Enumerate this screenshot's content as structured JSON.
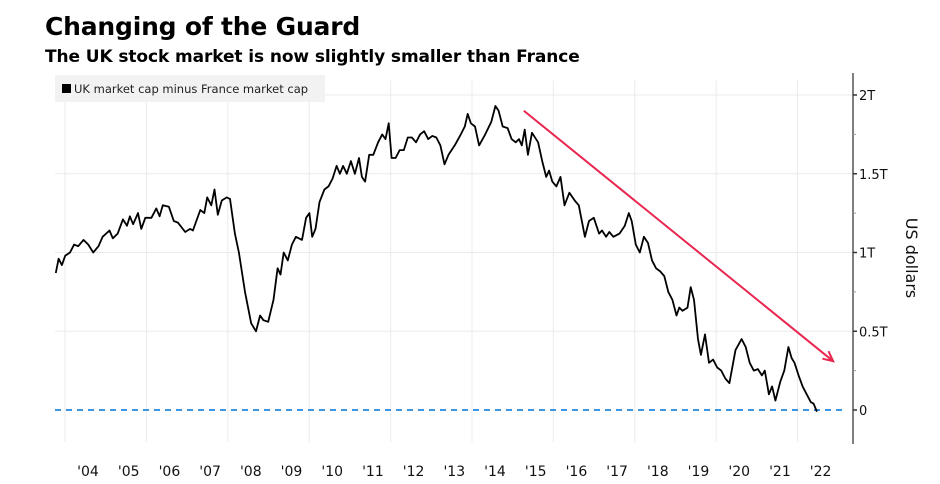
{
  "header": {
    "title": "Changing of the Guard",
    "subtitle": "The UK stock market is now slightly smaller than France"
  },
  "chart_data": {
    "type": "line",
    "title": "Changing of the Guard",
    "subtitle": "The UK stock market is now slightly smaller than France",
    "xlabel": "",
    "ylabel": "US dollars",
    "y_axis_position": "right",
    "ylim": [
      -0.15,
      2.1
    ],
    "xlim": [
      2003.7,
      2022.9
    ],
    "yticks": [
      0,
      0.5,
      1,
      1.5,
      2
    ],
    "ytick_labels": [
      "0",
      "0.5T",
      "1T",
      "1.5T",
      "2T"
    ],
    "xtick_labels": [
      "'04",
      "'05",
      "'06",
      "'07",
      "'08",
      "'09",
      "'10",
      "'11",
      "'12",
      "'13",
      "'14",
      "'15",
      "'16",
      "'17",
      "'18",
      "'19",
      "'20",
      "'21",
      "'22"
    ],
    "grid": true,
    "legend": {
      "placement": "top-left",
      "entries": [
        "UK market cap minus France market cap"
      ]
    },
    "series": [
      {
        "name": "UK market cap minus France market cap",
        "color": "#000000",
        "unit": "trillion USD",
        "points": [
          [
            2003.7,
            0.87
          ],
          [
            2003.77,
            0.96
          ],
          [
            2003.85,
            0.92
          ],
          [
            2003.93,
            0.98
          ],
          [
            2004.05,
            1.0
          ],
          [
            2004.15,
            1.05
          ],
          [
            2004.25,
            1.04
          ],
          [
            2004.38,
            1.08
          ],
          [
            2004.5,
            1.05
          ],
          [
            2004.62,
            1.0
          ],
          [
            2004.75,
            1.04
          ],
          [
            2004.85,
            1.1
          ],
          [
            2005.02,
            1.14
          ],
          [
            2005.1,
            1.09
          ],
          [
            2005.22,
            1.12
          ],
          [
            2005.35,
            1.21
          ],
          [
            2005.45,
            1.17
          ],
          [
            2005.52,
            1.23
          ],
          [
            2005.6,
            1.18
          ],
          [
            2005.72,
            1.25
          ],
          [
            2005.8,
            1.15
          ],
          [
            2005.9,
            1.22
          ],
          [
            2006.05,
            1.22
          ],
          [
            2006.17,
            1.28
          ],
          [
            2006.25,
            1.23
          ],
          [
            2006.33,
            1.3
          ],
          [
            2006.48,
            1.29
          ],
          [
            2006.6,
            1.2
          ],
          [
            2006.7,
            1.19
          ],
          [
            2006.88,
            1.13
          ],
          [
            2007.0,
            1.15
          ],
          [
            2007.07,
            1.14
          ],
          [
            2007.25,
            1.27
          ],
          [
            2007.35,
            1.25
          ],
          [
            2007.42,
            1.35
          ],
          [
            2007.52,
            1.3
          ],
          [
            2007.6,
            1.4
          ],
          [
            2007.68,
            1.24
          ],
          [
            2007.78,
            1.33
          ],
          [
            2007.9,
            1.35
          ],
          [
            2007.98,
            1.34
          ],
          [
            2008.1,
            1.12
          ],
          [
            2008.2,
            1.0
          ],
          [
            2008.35,
            0.75
          ],
          [
            2008.5,
            0.55
          ],
          [
            2008.62,
            0.5
          ],
          [
            2008.72,
            0.6
          ],
          [
            2008.8,
            0.57
          ],
          [
            2008.92,
            0.56
          ],
          [
            2009.05,
            0.7
          ],
          [
            2009.15,
            0.9
          ],
          [
            2009.22,
            0.86
          ],
          [
            2009.3,
            1.0
          ],
          [
            2009.4,
            0.95
          ],
          [
            2009.5,
            1.05
          ],
          [
            2009.6,
            1.1
          ],
          [
            2009.75,
            1.08
          ],
          [
            2009.85,
            1.22
          ],
          [
            2009.93,
            1.25
          ],
          [
            2010.0,
            1.1
          ],
          [
            2010.08,
            1.15
          ],
          [
            2010.18,
            1.32
          ],
          [
            2010.3,
            1.4
          ],
          [
            2010.4,
            1.42
          ],
          [
            2010.5,
            1.47
          ],
          [
            2010.6,
            1.55
          ],
          [
            2010.68,
            1.5
          ],
          [
            2010.76,
            1.55
          ],
          [
            2010.85,
            1.5
          ],
          [
            2010.95,
            1.58
          ],
          [
            2011.05,
            1.5
          ],
          [
            2011.15,
            1.6
          ],
          [
            2011.22,
            1.48
          ],
          [
            2011.3,
            1.45
          ],
          [
            2011.4,
            1.62
          ],
          [
            2011.5,
            1.62
          ],
          [
            2011.62,
            1.7
          ],
          [
            2011.72,
            1.75
          ],
          [
            2011.8,
            1.72
          ],
          [
            2011.88,
            1.82
          ],
          [
            2011.95,
            1.6
          ],
          [
            2012.05,
            1.6
          ],
          [
            2012.15,
            1.65
          ],
          [
            2012.25,
            1.65
          ],
          [
            2012.35,
            1.73
          ],
          [
            2012.45,
            1.73
          ],
          [
            2012.55,
            1.7
          ],
          [
            2012.65,
            1.75
          ],
          [
            2012.75,
            1.77
          ],
          [
            2012.85,
            1.72
          ],
          [
            2012.95,
            1.74
          ],
          [
            2013.05,
            1.73
          ],
          [
            2013.15,
            1.68
          ],
          [
            2013.25,
            1.56
          ],
          [
            2013.35,
            1.62
          ],
          [
            2013.5,
            1.68
          ],
          [
            2013.65,
            1.75
          ],
          [
            2013.75,
            1.8
          ],
          [
            2013.82,
            1.88
          ],
          [
            2013.9,
            1.82
          ],
          [
            2014.0,
            1.8
          ],
          [
            2014.1,
            1.68
          ],
          [
            2014.25,
            1.75
          ],
          [
            2014.4,
            1.83
          ],
          [
            2014.5,
            1.93
          ],
          [
            2014.58,
            1.9
          ],
          [
            2014.68,
            1.8
          ],
          [
            2014.8,
            1.79
          ],
          [
            2014.9,
            1.72
          ],
          [
            2015.0,
            1.7
          ],
          [
            2015.08,
            1.72
          ],
          [
            2015.15,
            1.68
          ],
          [
            2015.22,
            1.78
          ],
          [
            2015.3,
            1.62
          ],
          [
            2015.4,
            1.76
          ],
          [
            2015.55,
            1.7
          ],
          [
            2015.65,
            1.58
          ],
          [
            2015.75,
            1.48
          ],
          [
            2015.82,
            1.52
          ],
          [
            2015.9,
            1.45
          ],
          [
            2016.0,
            1.42
          ],
          [
            2016.1,
            1.48
          ],
          [
            2016.2,
            1.3
          ],
          [
            2016.32,
            1.38
          ],
          [
            2016.45,
            1.33
          ],
          [
            2016.55,
            1.3
          ],
          [
            2016.7,
            1.1
          ],
          [
            2016.8,
            1.2
          ],
          [
            2016.92,
            1.22
          ],
          [
            2017.05,
            1.12
          ],
          [
            2017.12,
            1.14
          ],
          [
            2017.22,
            1.1
          ],
          [
            2017.3,
            1.13
          ],
          [
            2017.4,
            1.1
          ],
          [
            2017.55,
            1.12
          ],
          [
            2017.68,
            1.17
          ],
          [
            2017.78,
            1.25
          ],
          [
            2017.85,
            1.2
          ],
          [
            2017.95,
            1.05
          ],
          [
            2018.05,
            1.0
          ],
          [
            2018.15,
            1.1
          ],
          [
            2018.25,
            1.06
          ],
          [
            2018.35,
            0.95
          ],
          [
            2018.45,
            0.9
          ],
          [
            2018.55,
            0.88
          ],
          [
            2018.65,
            0.85
          ],
          [
            2018.75,
            0.75
          ],
          [
            2018.85,
            0.7
          ],
          [
            2018.95,
            0.6
          ],
          [
            2019.02,
            0.65
          ],
          [
            2019.1,
            0.63
          ],
          [
            2019.22,
            0.65
          ],
          [
            2019.3,
            0.78
          ],
          [
            2019.38,
            0.7
          ],
          [
            2019.48,
            0.45
          ],
          [
            2019.55,
            0.35
          ],
          [
            2019.65,
            0.48
          ],
          [
            2019.75,
            0.3
          ],
          [
            2019.85,
            0.32
          ],
          [
            2019.95,
            0.27
          ],
          [
            2020.05,
            0.25
          ],
          [
            2020.15,
            0.2
          ],
          [
            2020.25,
            0.17
          ],
          [
            2020.4,
            0.38
          ],
          [
            2020.55,
            0.45
          ],
          [
            2020.65,
            0.4
          ],
          [
            2020.75,
            0.3
          ],
          [
            2020.85,
            0.25
          ],
          [
            2020.95,
            0.26
          ],
          [
            2021.05,
            0.22
          ],
          [
            2021.12,
            0.25
          ],
          [
            2021.22,
            0.1
          ],
          [
            2021.3,
            0.15
          ],
          [
            2021.38,
            0.06
          ],
          [
            2021.5,
            0.18
          ],
          [
            2021.6,
            0.25
          ],
          [
            2021.7,
            0.4
          ],
          [
            2021.78,
            0.33
          ],
          [
            2021.85,
            0.3
          ],
          [
            2021.95,
            0.22
          ],
          [
            2022.05,
            0.15
          ],
          [
            2022.15,
            0.1
          ],
          [
            2022.25,
            0.05
          ],
          [
            2022.32,
            0.04
          ],
          [
            2022.4,
            -0.01
          ]
        ]
      }
    ],
    "reference_lines": [
      {
        "name": "zero-line",
        "y": 0,
        "style": "dashed",
        "color": "#3d95e0"
      }
    ],
    "annotations": [
      {
        "type": "arrow",
        "color": "#e8264f",
        "from": [
          2015.2,
          1.9
        ],
        "to": [
          2022.8,
          0.31
        ]
      }
    ]
  }
}
